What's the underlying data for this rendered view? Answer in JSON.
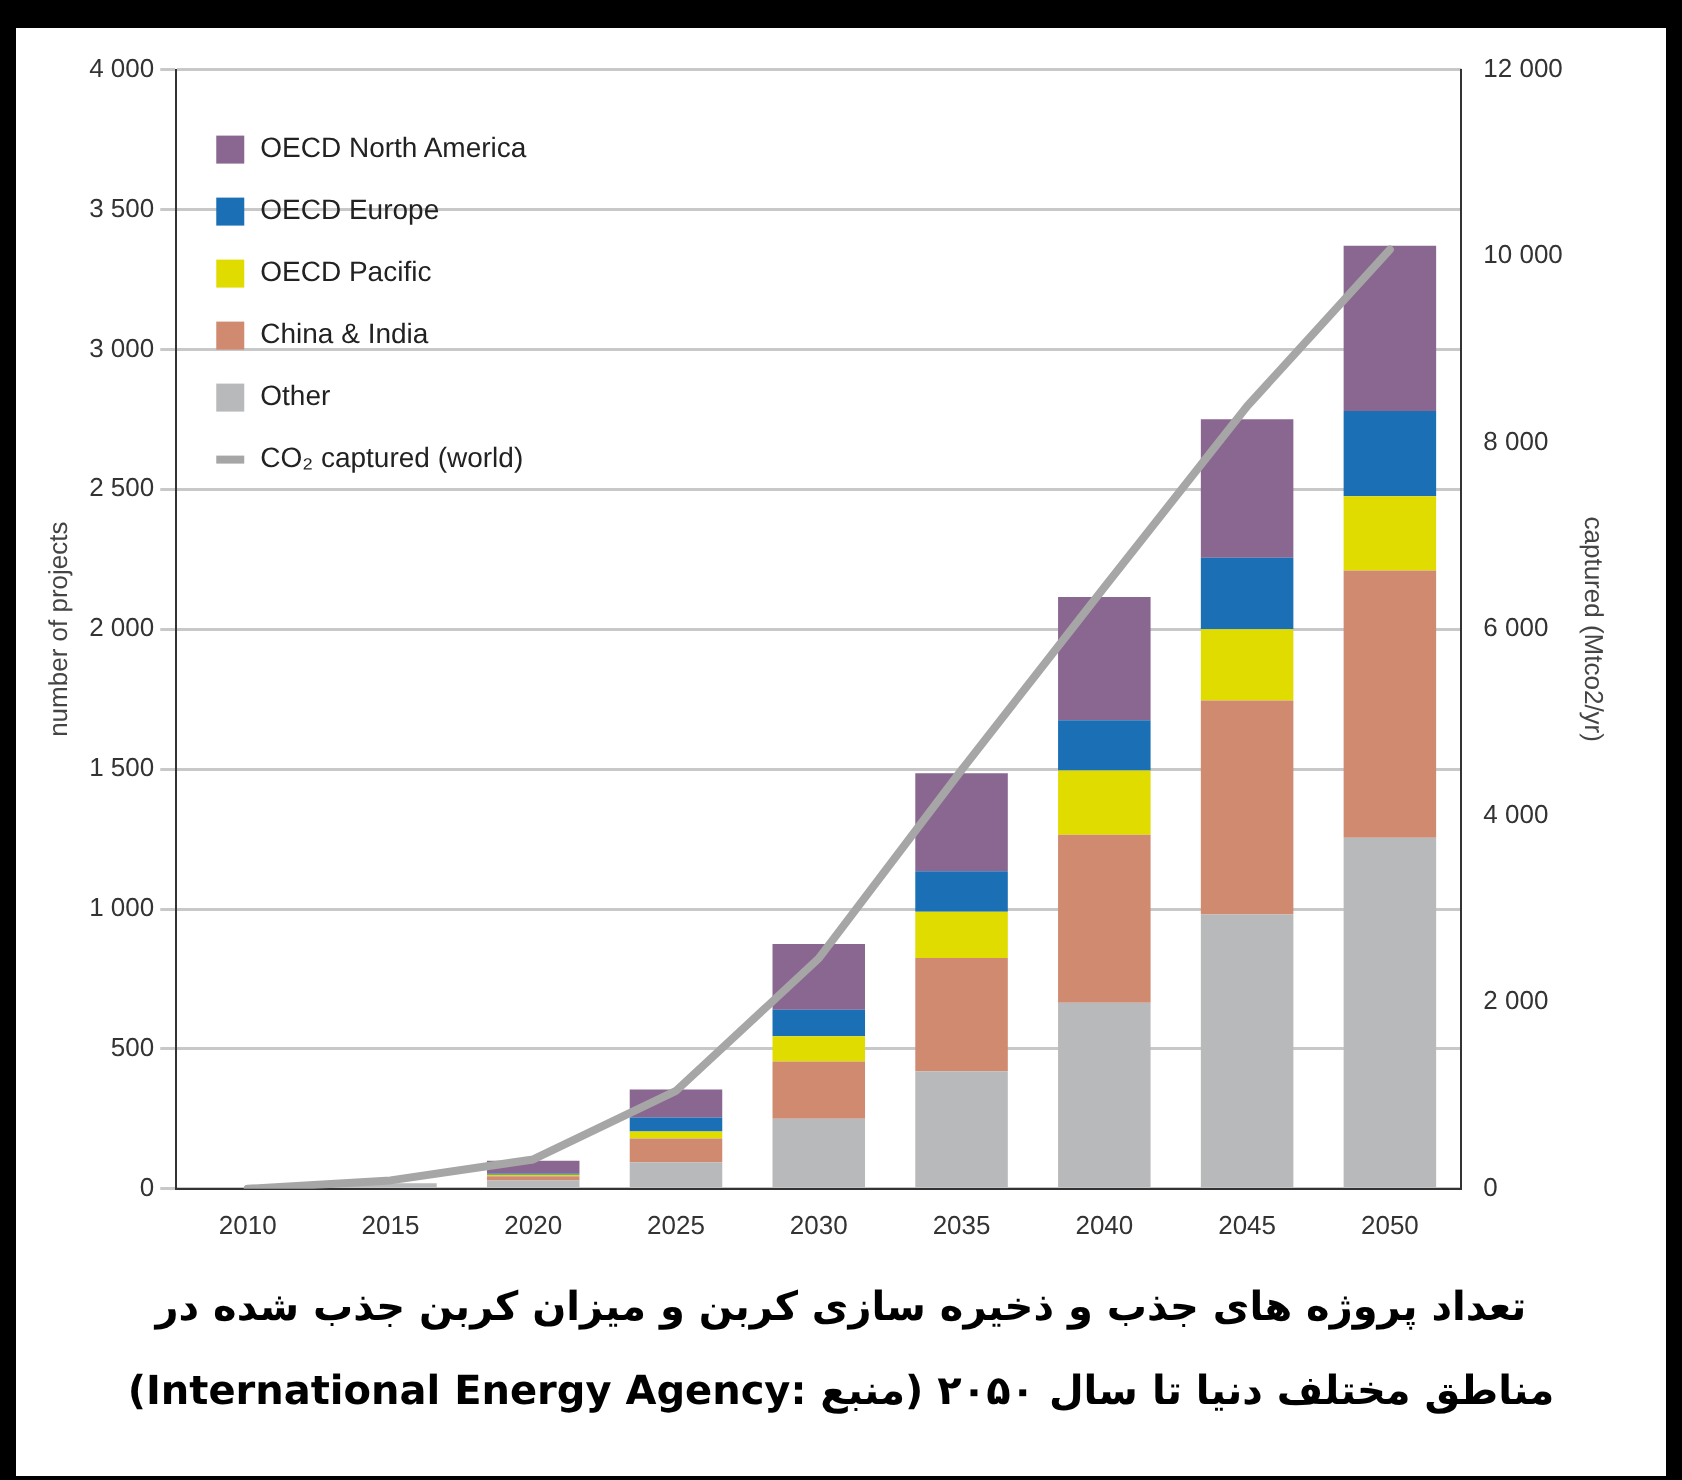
{
  "chart_data": {
    "type": "bar",
    "stacked": true,
    "xlabel": null,
    "ylabel": "number of projects",
    "y2label": "captured (Mtco2/yr)",
    "categories": [
      "2010",
      "2015",
      "2020",
      "2025",
      "2030",
      "2035",
      "2040",
      "2045",
      "2050"
    ],
    "series": [
      {
        "name": "Other",
        "color": "#b8b9bb",
        "values": [
          0,
          20,
          30,
          95,
          250,
          420,
          665,
          980,
          1255
        ]
      },
      {
        "name": "China & India",
        "color": "#cf8a70",
        "values": [
          0,
          0,
          15,
          85,
          205,
          405,
          600,
          765,
          955
        ]
      },
      {
        "name": "OECD Pacific",
        "color": "#e0dc00",
        "values": [
          0,
          0,
          5,
          25,
          90,
          165,
          230,
          255,
          265
        ]
      },
      {
        "name": "OECD Europe",
        "color": "#1a6fb5",
        "values": [
          0,
          0,
          5,
          50,
          95,
          145,
          180,
          255,
          305
        ]
      },
      {
        "name": "OECD North America",
        "color": "#8a6790",
        "values": [
          0,
          0,
          45,
          100,
          235,
          350,
          440,
          495,
          590
        ]
      },
      {
        "name": "CO₂ captured (world)",
        "type": "line",
        "axis": "y2",
        "color": "#a6a6a6",
        "values": [
          0,
          90,
          315,
          1050,
          2470,
          4490,
          6450,
          8390,
          10070
        ]
      }
    ],
    "ylim": [
      0,
      4000
    ],
    "yticks": [
      0,
      500,
      {
        "value": 1000,
        "label": "1 000"
      },
      {
        "value": 1500,
        "label": "1 500"
      },
      {
        "value": 2000,
        "label": "2 000"
      },
      {
        "value": 2500,
        "label": "2 500"
      },
      {
        "value": 3000,
        "label": "3 000"
      },
      {
        "value": 3500,
        "label": "3 500"
      },
      {
        "value": 4000,
        "label": "4 000"
      }
    ],
    "y2lim": [
      0,
      12000
    ],
    "y2ticks": [
      0,
      {
        "value": 2000,
        "label": "2 000"
      },
      {
        "value": 4000,
        "label": "4 000"
      },
      {
        "value": 6000,
        "label": "6 000"
      },
      {
        "value": 8000,
        "label": "8 000"
      },
      {
        "value": 10000,
        "label": "10 000"
      },
      {
        "value": 12000,
        "label": "12 000"
      }
    ],
    "grid": "y",
    "legend": "top left",
    "marker": "none",
    "annotations": [
      "تعداد پروژه های جذب و ذخیره سازی کربن و میزان کربن جذب شده در مناطق مختلف دنیا تا سال ۲۰۵۰ (منبع :International Energy Agency)"
    ]
  }
}
